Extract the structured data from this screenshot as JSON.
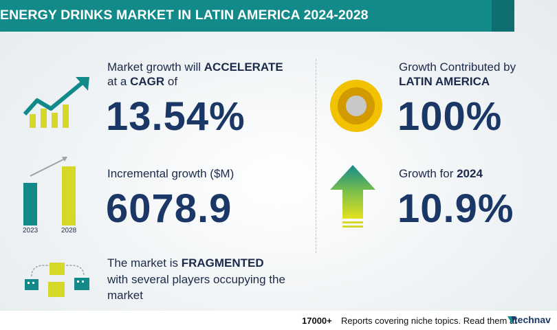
{
  "title": "ENERGY DRINKS MARKET IN LATIN AMERICA 2024-2028",
  "cagr": {
    "line1_prefix": "Market growth will ",
    "line1_emphasis": "ACCELERATE",
    "line2_prefix": "at a ",
    "line2_emphasis": "CAGR",
    "line2_suffix": "  of",
    "value": "13.54%"
  },
  "incremental": {
    "label": "Incremental growth ($M)",
    "value": "6078.9",
    "bar_years": [
      "2023",
      "2028"
    ]
  },
  "market": {
    "line1_prefix": "The market is ",
    "line1_emphasis": "FRAGMENTED",
    "line2": "with several players occupying the",
    "line3": "market"
  },
  "region": {
    "line1": "Growth Contributed by",
    "line2": "LATIN AMERICA",
    "value": "100%"
  },
  "year_growth": {
    "label_prefix": "Growth for ",
    "label_year": "2024",
    "value": "10.9%"
  },
  "footer": {
    "count": "17000+",
    "text": "Reports covering niche topics. Read them at",
    "brand": "technav"
  },
  "icons": {
    "growth": "growth-chart-icon",
    "bars": "bar-chart-icon",
    "network": "building-network-icon",
    "donut": "donut-icon",
    "arrow": "up-arrow-icon",
    "brand": "technavio-logo-icon"
  },
  "colors": {
    "teal": "#138a8a",
    "navy": "#1b3766",
    "yellow": "#d6d829",
    "gold": "#f2c200"
  }
}
